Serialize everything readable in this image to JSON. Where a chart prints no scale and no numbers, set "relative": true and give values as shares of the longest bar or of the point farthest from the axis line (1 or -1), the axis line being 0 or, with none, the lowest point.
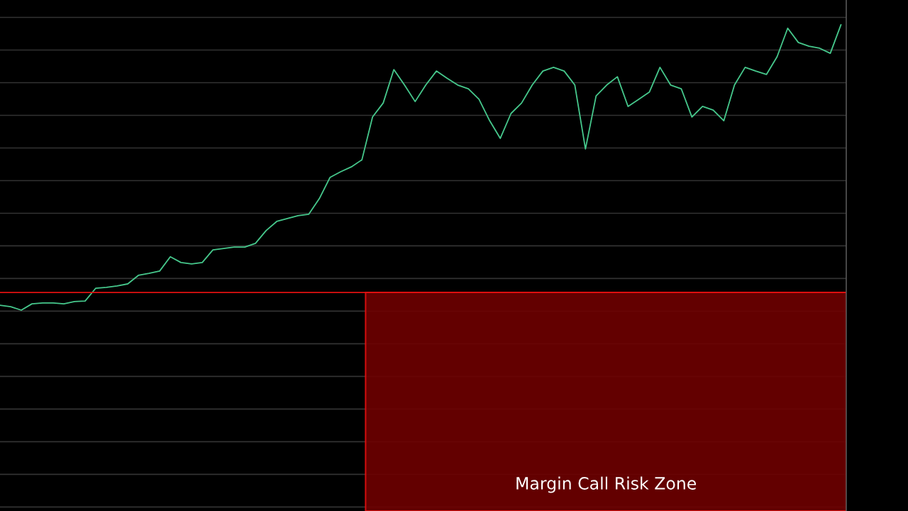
{
  "chart_data": {
    "type": "line",
    "relative": true,
    "categories": [
      null,
      null,
      null,
      null,
      null,
      null,
      null,
      null,
      null,
      null,
      null,
      null,
      null,
      null,
      null,
      null,
      null,
      null,
      null,
      null,
      null,
      null,
      null,
      null,
      null,
      null,
      null,
      null,
      null,
      null,
      null,
      null,
      null,
      null,
      null,
      null,
      null,
      null,
      null,
      null,
      null,
      null,
      null,
      null,
      null,
      null,
      null,
      null,
      null,
      null,
      null,
      null,
      null,
      null,
      null,
      null,
      null,
      null,
      null,
      null,
      null,
      null,
      null,
      null,
      null,
      null,
      null,
      null,
      null,
      null,
      null,
      null,
      null,
      null,
      null,
      null,
      null,
      null,
      null,
      null
    ],
    "series": [
      {
        "color": "#46c88c",
        "values": [
          0.017,
          0.012,
          0,
          0.022,
          0.025,
          0.025,
          0.022,
          0.03,
          0.032,
          0.077,
          0.08,
          0.085,
          0.092,
          0.122,
          0.129,
          0.137,
          0.187,
          0.167,
          0.162,
          0.167,
          0.211,
          0.216,
          0.221,
          0.221,
          0.234,
          0.279,
          0.311,
          0.321,
          0.331,
          0.336,
          0.391,
          0.465,
          0.485,
          0.502,
          0.527,
          0.677,
          0.726,
          0.843,
          0.789,
          0.731,
          0.789,
          0.838,
          0.813,
          0.789,
          0.776,
          0.739,
          0.664,
          0.602,
          0.689,
          0.726,
          0.789,
          0.838,
          0.851,
          0.838,
          0.789,
          0.565,
          0.751,
          0.789,
          0.818,
          0.714,
          0.739,
          0.764,
          0.851,
          0.789,
          0.776,
          0.677,
          0.714,
          0.701,
          0.664,
          0.789,
          0.851,
          0.838,
          0.826,
          0.888,
          0.988,
          0.938,
          0.925,
          0.918,
          0.9,
          1
        ]
      }
    ],
    "ref_lines": [
      {
        "axis": "y",
        "value": 0.062,
        "color": "#e01010"
      }
    ],
    "annotations": [
      "Margin Call Risk Zone"
    ],
    "grid": "y",
    "legend": false,
    "marker": "none",
    "line_style": "solid"
  }
}
